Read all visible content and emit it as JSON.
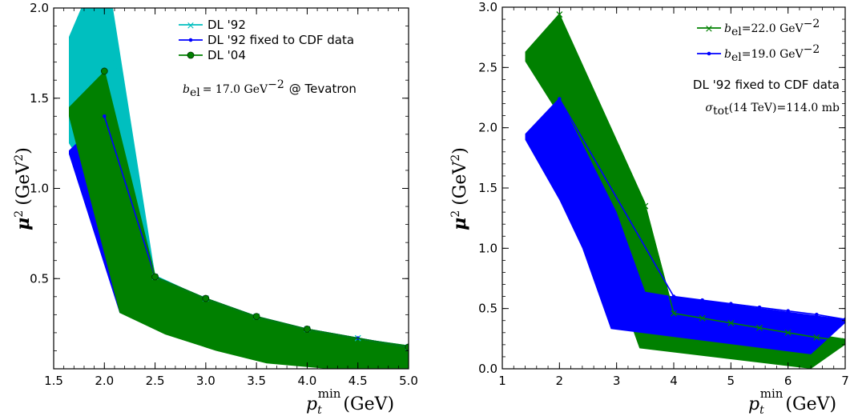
{
  "chart_data": [
    {
      "type": "area",
      "xlabel": "p_t^min (GeV)",
      "ylabel": "μ² (GeV²)",
      "xlim": [
        1.5,
        5.0
      ],
      "ylim": [
        0.0,
        2.0
      ],
      "xticks": [
        "1.5",
        "2.0",
        "2.5",
        "3.0",
        "3.5",
        "4.0",
        "4.5",
        "5.0"
      ],
      "yticks": [
        "0.5",
        "1.0",
        "1.5",
        "2.0"
      ],
      "legend_position": "top-right",
      "annotation": {
        "text_math": "b_el = 17.0 GeV^-2",
        "text_plain": "@ Tevatron"
      },
      "series": [
        {
          "name": "DL '92",
          "color": "#00bfbf",
          "marker": "x",
          "band_upper": [
            [
              1.65,
              1.84
            ],
            [
              2.0,
              2.3
            ],
            [
              2.5,
              0.52
            ],
            [
              3.0,
              0.39
            ],
            [
              3.5,
              0.29
            ],
            [
              4.0,
              0.22
            ],
            [
              4.5,
              0.17
            ],
            [
              5.0,
              0.13
            ]
          ],
          "band_lower": [
            [
              1.65,
              1.25
            ],
            [
              2.5,
              0.5
            ],
            [
              3.0,
              0.38
            ],
            [
              3.5,
              0.28
            ],
            [
              4.0,
              0.21
            ],
            [
              4.5,
              0.16
            ],
            [
              5.0,
              0.12
            ]
          ],
          "x": [
            2.0,
            2.5,
            3.0,
            3.5,
            4.0,
            4.5,
            5.0
          ],
          "y": [
            2.0,
            0.51,
            0.39,
            0.29,
            0.22,
            0.17,
            0.12
          ]
        },
        {
          "name": "DL '92 fixed to CDF data",
          "color": "#0000ff",
          "marker": "dot",
          "band_upper": [
            [
              1.65,
              1.21
            ],
            [
              2.0,
              1.4
            ],
            [
              2.5,
              0.51
            ]
          ],
          "band_lower": [
            [
              1.65,
              1.19
            ],
            [
              2.15,
              0.31
            ],
            [
              2.5,
              0.3
            ]
          ],
          "x": [
            2.0,
            2.5,
            3.0,
            3.5,
            4.0,
            4.5,
            5.0
          ],
          "y": [
            1.4,
            0.51,
            0.39,
            0.29,
            0.22,
            0.17,
            0.12
          ]
        },
        {
          "name": "DL '04",
          "color": "#008000",
          "marker": "circle",
          "band_upper": [
            [
              1.65,
              1.45
            ],
            [
              2.0,
              1.65
            ],
            [
              2.5,
              0.51
            ],
            [
              3.0,
              0.39
            ],
            [
              3.5,
              0.29
            ],
            [
              4.0,
              0.22
            ],
            [
              4.5,
              0.17
            ],
            [
              5.0,
              0.13
            ]
          ],
          "band_lower": [
            [
              1.65,
              1.4
            ],
            [
              2.15,
              0.31
            ],
            [
              2.6,
              0.19
            ],
            [
              3.1,
              0.1
            ],
            [
              3.6,
              0.03
            ],
            [
              4.2,
              0.0
            ],
            [
              5.0,
              0.0
            ]
          ],
          "x": [
            2.0,
            2.5,
            3.0,
            3.5,
            4.0,
            5.0
          ],
          "y": [
            1.65,
            0.51,
            0.39,
            0.29,
            0.22,
            0.12
          ]
        }
      ]
    },
    {
      "type": "area",
      "xlabel": "p_t^min (GeV)",
      "ylabel": "μ² (GeV²)",
      "xlim": [
        1.0,
        7.0
      ],
      "ylim": [
        0.0,
        3.0
      ],
      "xticks": [
        "1",
        "2",
        "3",
        "4",
        "5",
        "6",
        "7"
      ],
      "yticks": [
        "0.0",
        "0.5",
        "1.0",
        "1.5",
        "2.0",
        "2.5",
        "3.0"
      ],
      "legend_position": "top-right",
      "annotation": {
        "text_plain": "DL '92 fixed to CDF data",
        "text_math": "σ_tot(14 TeV) = 114.0 mb"
      },
      "series": [
        {
          "name": "b_el = 22.0 GeV^-2",
          "color": "#008000",
          "marker": "x",
          "band_upper": [
            [
              1.4,
              2.63
            ],
            [
              2.0,
              2.95
            ],
            [
              3.5,
              1.38
            ],
            [
              4.0,
              0.47
            ],
            [
              7.0,
              0.25
            ]
          ],
          "band_lower": [
            [
              1.4,
              2.55
            ],
            [
              2.0,
              2.1
            ],
            [
              2.7,
              1.1
            ],
            [
              3.4,
              0.17
            ],
            [
              6.4,
              0.0
            ],
            [
              7.0,
              0.2
            ]
          ],
          "x": [
            2.0,
            2.5,
            3.0,
            3.5,
            4.0,
            4.5,
            5.0,
            5.5,
            6.0,
            6.5,
            7.0
          ],
          "y": [
            2.94,
            2.35,
            1.83,
            1.35,
            0.46,
            0.42,
            0.38,
            0.34,
            0.3,
            0.26,
            0.23
          ]
        },
        {
          "name": "b_el = 19.0 GeV^-2",
          "color": "#0000ff",
          "marker": "dot",
          "band_upper": [
            [
              1.4,
              1.95
            ],
            [
              2.0,
              2.25
            ],
            [
              3.0,
              1.3
            ],
            [
              3.5,
              0.64
            ],
            [
              4.0,
              0.6
            ],
            [
              7.0,
              0.41
            ]
          ],
          "band_lower": [
            [
              1.4,
              1.9
            ],
            [
              2.0,
              1.4
            ],
            [
              2.4,
              1.0
            ],
            [
              2.9,
              0.33
            ],
            [
              6.4,
              0.12
            ],
            [
              7.0,
              0.38
            ]
          ],
          "x": [
            2.0,
            4.0,
            4.5,
            5.0,
            5.5,
            6.0,
            6.5,
            7.0
          ],
          "y": [
            2.24,
            0.6,
            0.57,
            0.54,
            0.51,
            0.48,
            0.45,
            0.41
          ]
        }
      ]
    }
  ],
  "ui": {
    "left": {
      "ylabel_main": "μ",
      "ylabel_unit": "(GeV",
      "xlabel_p": "p",
      "xlabel_sub": "t",
      "xlabel_sup": "min",
      "xlabel_unit": "(GeV)",
      "legend": [
        "DL '92",
        "DL '92 fixed to CDF data",
        "DL '04"
      ],
      "anno_b": "b",
      "anno_b_sub": "el",
      "anno_eq": "= 17.0 GeV",
      "anno_exp": "−2",
      "anno_at": "@ Tevatron"
    },
    "right": {
      "legend_b": "b",
      "legend_b_sub": "el",
      "legend_1_val": "=22.0 GeV",
      "legend_2_val": "=19.0 GeV",
      "legend_exp": "−2",
      "anno_title": "DL '92 fixed to CDF data",
      "anno_sigma": "σ",
      "anno_sigma_sub": "tot",
      "anno_sigma_rest": "(14 TeV)=114.0 mb"
    }
  }
}
